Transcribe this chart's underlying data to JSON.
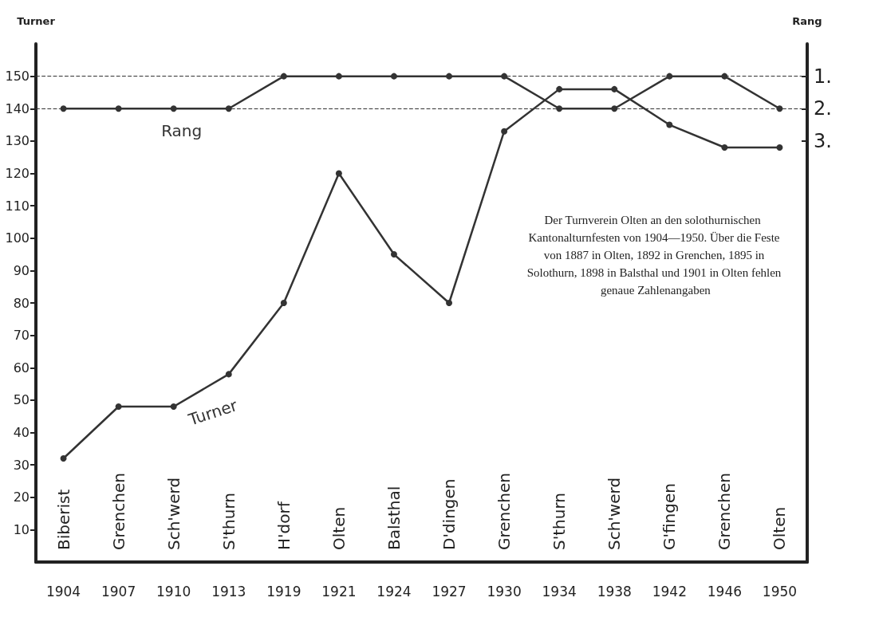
{
  "chart_data": {
    "type": "line",
    "ylabel": "Turner",
    "y2label": "Rang",
    "categories": [
      "1904",
      "1907",
      "1910",
      "1913",
      "1919",
      "1921",
      "1924",
      "1927",
      "1930",
      "1934",
      "1938",
      "1942",
      "1946",
      "1950"
    ],
    "series": [
      {
        "name": "Rang",
        "color": "#333333",
        "axis": "y2",
        "values": [
          2,
          2,
          2,
          2,
          1,
          1,
          1,
          1,
          1,
          2,
          2,
          1,
          1,
          2
        ]
      },
      {
        "name": "Turner",
        "color": "#333333",
        "values": [
          32,
          48,
          48,
          58,
          80,
          120,
          95,
          80,
          133,
          146,
          146,
          135,
          128,
          128
        ]
      }
    ],
    "ylim": [
      0,
      160
    ],
    "yticks": [
      10,
      20,
      30,
      40,
      50,
      60,
      70,
      80,
      90,
      100,
      110,
      120,
      130,
      140,
      150
    ],
    "y2lim": [
      16,
      0
    ],
    "y2ticks": [
      {
        "value": 1,
        "label": "1."
      },
      {
        "value": 2,
        "label": "2."
      },
      {
        "value": 3,
        "label": "3."
      }
    ],
    "ref_lines": [
      {
        "axis": "y2",
        "value": 1,
        "line_style": "dashed",
        "color": "#333333"
      },
      {
        "axis": "y2",
        "value": 2,
        "line_style": "dashed",
        "color": "#333333"
      }
    ],
    "annotations": [
      "Biberist",
      "Grenchen",
      "Sch'werd",
      "S'thurn",
      "H'dorf",
      "Olten",
      "Balsthal",
      "D'dingen",
      "Grenchen",
      "S'thurn",
      "Sch'werd",
      "G'fingen",
      "Grenchen",
      "Olten",
      "Der Turnverein Olten an den solothurnischen Kantonalturnfesten von 1904—1950. Über die Feste von 1887 in Olten, 1892 in Grenchen, 1895 in Solothurn, 1898 in Balsthal und 1901 in Olten fehlen genaue Zahlenangaben"
    ],
    "grid": false,
    "legend": false,
    "marker": "circle",
    "line_style": "solid"
  }
}
